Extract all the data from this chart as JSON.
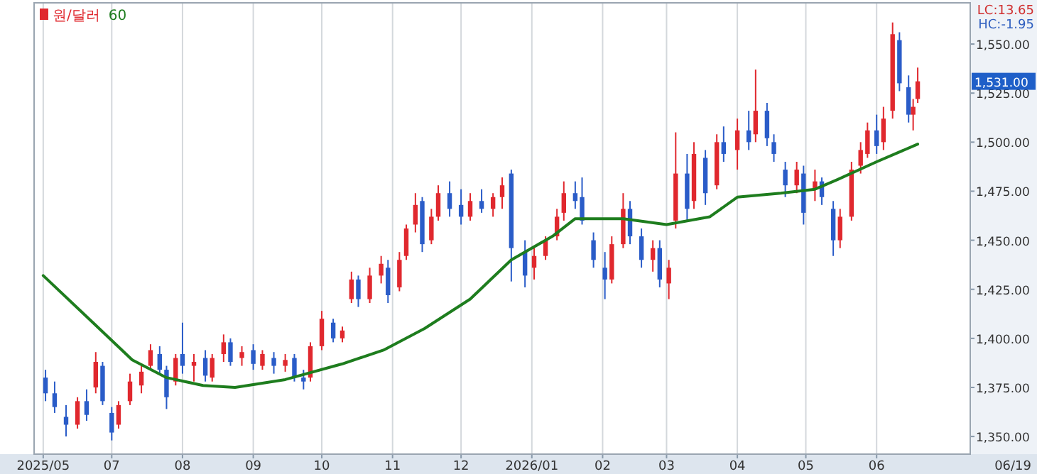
{
  "chart_data": {
    "type": "candlestick",
    "ylim": [
      1341,
      1571
    ],
    "yticks": [
      {
        "value": 1350,
        "label": "1,350.00"
      },
      {
        "value": 1375,
        "label": "1,375.00"
      },
      {
        "value": 1400,
        "label": "1,400.00"
      },
      {
        "value": 1425,
        "label": "1,425.00"
      },
      {
        "value": 1450,
        "label": "1,450.00"
      },
      {
        "value": 1475,
        "label": "1,475.00"
      },
      {
        "value": 1500,
        "label": "1,500.00"
      },
      {
        "value": 1525,
        "label": "1,525.00"
      },
      {
        "value": 1550,
        "label": "1,550.00"
      }
    ],
    "xlim": [
      "2025-05-28",
      "2026-07-12"
    ],
    "xticks": [
      {
        "value": "2025-06-01",
        "label": "2025/05"
      },
      {
        "value": "2025-07-01",
        "label": "07"
      },
      {
        "value": "2025-08-01",
        "label": "08"
      },
      {
        "value": "2025-09-01",
        "label": "09"
      },
      {
        "value": "2025-10-01",
        "label": "10"
      },
      {
        "value": "2025-11-01",
        "label": "11"
      },
      {
        "value": "2025-12-01",
        "label": "12"
      },
      {
        "value": "2026-01-01",
        "label": "2026/01"
      },
      {
        "value": "2026-02-01",
        "label": "02"
      },
      {
        "value": "2026-03-01",
        "label": "03"
      },
      {
        "value": "2026-04-01",
        "label": "04"
      },
      {
        "value": "2026-05-01",
        "label": "05"
      },
      {
        "value": "2026-06-01",
        "label": "06"
      }
    ],
    "grid": "x",
    "legend": "top left",
    "annotations": [
      "LC:13.65",
      "HC:-1.95",
      "1,531.00",
      "06/19"
    ],
    "series": [
      {
        "name": "원/달러",
        "x": [
          "2025-06-02",
          "2025-06-06",
          "2025-06-11",
          "2025-06-16",
          "2025-06-20",
          "2025-06-24",
          "2025-06-27",
          "2025-07-01",
          "2025-07-04",
          "2025-07-09",
          "2025-07-14",
          "2025-07-18",
          "2025-07-22",
          "2025-07-25",
          "2025-07-29",
          "2025-08-01",
          "2025-08-06",
          "2025-08-11",
          "2025-08-14",
          "2025-08-19",
          "2025-08-22",
          "2025-08-27",
          "2025-09-01",
          "2025-09-05",
          "2025-09-10",
          "2025-09-15",
          "2025-09-19",
          "2025-09-23",
          "2025-09-26",
          "2025-10-01",
          "2025-10-06",
          "2025-10-10",
          "2025-10-14",
          "2025-10-17",
          "2025-10-22",
          "2025-10-27",
          "2025-10-30",
          "2025-11-04",
          "2025-11-07",
          "2025-11-11",
          "2025-11-14",
          "2025-11-18",
          "2025-11-21",
          "2025-11-26",
          "2025-12-01",
          "2025-12-05",
          "2025-12-10",
          "2025-12-15",
          "2025-12-19",
          "2025-12-23",
          "2025-12-29",
          "2026-01-02",
          "2026-01-07",
          "2026-01-12",
          "2026-01-15",
          "2026-01-20",
          "2026-01-23",
          "2026-01-28",
          "2026-02-02",
          "2026-02-05",
          "2026-02-10",
          "2026-02-13",
          "2026-02-18",
          "2026-02-23",
          "2026-02-26",
          "2026-03-02",
          "2026-03-05",
          "2026-03-10",
          "2026-03-13",
          "2026-03-18",
          "2026-03-23",
          "2026-03-26",
          "2026-04-01",
          "2026-04-06",
          "2026-04-09",
          "2026-04-14",
          "2026-04-17",
          "2026-04-22",
          "2026-04-27",
          "2026-04-30",
          "2026-05-05",
          "2026-05-08",
          "2026-05-13",
          "2026-05-16",
          "2026-05-21",
          "2026-05-25",
          "2026-05-28",
          "2026-06-01",
          "2026-06-04",
          "2026-06-08",
          "2026-06-11",
          "2026-06-15",
          "2026-06-17",
          "2026-06-19"
        ],
        "ohlc": [
          [
            1380,
            1384,
            1368,
            1372
          ],
          [
            1372,
            1378,
            1362,
            1365
          ],
          [
            1360,
            1366,
            1350,
            1356
          ],
          [
            1356,
            1370,
            1354,
            1368
          ],
          [
            1368,
            1374,
            1358,
            1361
          ],
          [
            1375,
            1393,
            1372,
            1388
          ],
          [
            1386,
            1388,
            1366,
            1368
          ],
          [
            1362,
            1365,
            1348,
            1352
          ],
          [
            1356,
            1368,
            1354,
            1366
          ],
          [
            1368,
            1382,
            1366,
            1378
          ],
          [
            1376,
            1386,
            1372,
            1383
          ],
          [
            1386,
            1397,
            1384,
            1394
          ],
          [
            1392,
            1396,
            1382,
            1384
          ],
          [
            1384,
            1386,
            1364,
            1370
          ],
          [
            1378,
            1392,
            1376,
            1390
          ],
          [
            1392,
            1408,
            1382,
            1386
          ],
          [
            1386,
            1392,
            1378,
            1388
          ],
          [
            1390,
            1394,
            1378,
            1381
          ],
          [
            1380,
            1392,
            1378,
            1390
          ],
          [
            1392,
            1402,
            1388,
            1398
          ],
          [
            1398,
            1400,
            1386,
            1388
          ],
          [
            1390,
            1396,
            1386,
            1393
          ],
          [
            1394,
            1397,
            1384,
            1387
          ],
          [
            1386,
            1394,
            1384,
            1392
          ],
          [
            1390,
            1393,
            1382,
            1386
          ],
          [
            1386,
            1392,
            1383,
            1389
          ],
          [
            1390,
            1392,
            1378,
            1380
          ],
          [
            1380,
            1384,
            1374,
            1378
          ],
          [
            1380,
            1398,
            1378,
            1396
          ],
          [
            1396,
            1414,
            1394,
            1410
          ],
          [
            1408,
            1410,
            1398,
            1400
          ],
          [
            1400,
            1406,
            1398,
            1404
          ],
          [
            1420,
            1434,
            1418,
            1430
          ],
          [
            1430,
            1432,
            1416,
            1420
          ],
          [
            1420,
            1436,
            1418,
            1432
          ],
          [
            1432,
            1442,
            1428,
            1438
          ],
          [
            1436,
            1440,
            1418,
            1422
          ],
          [
            1426,
            1444,
            1424,
            1440
          ],
          [
            1442,
            1458,
            1440,
            1456
          ],
          [
            1458,
            1474,
            1454,
            1468
          ],
          [
            1470,
            1472,
            1444,
            1448
          ],
          [
            1450,
            1466,
            1448,
            1462
          ],
          [
            1462,
            1478,
            1460,
            1474
          ],
          [
            1474,
            1480,
            1462,
            1466
          ],
          [
            1468,
            1476,
            1458,
            1462
          ],
          [
            1462,
            1474,
            1460,
            1470
          ],
          [
            1470,
            1476,
            1464,
            1466
          ],
          [
            1466,
            1474,
            1462,
            1472
          ],
          [
            1472,
            1482,
            1466,
            1478
          ],
          [
            1484,
            1486,
            1429,
            1446
          ],
          [
            1444,
            1450,
            1426,
            1432
          ],
          [
            1436,
            1446,
            1430,
            1442
          ],
          [
            1442,
            1452,
            1440,
            1450
          ],
          [
            1452,
            1466,
            1450,
            1462
          ],
          [
            1464,
            1480,
            1460,
            1474
          ],
          [
            1474,
            1480,
            1466,
            1470
          ],
          [
            1472,
            1482,
            1458,
            1460
          ],
          [
            1450,
            1454,
            1436,
            1440
          ],
          [
            1436,
            1444,
            1420,
            1430
          ],
          [
            1430,
            1452,
            1428,
            1448
          ],
          [
            1448,
            1474,
            1446,
            1466
          ],
          [
            1466,
            1470,
            1448,
            1452
          ],
          [
            1452,
            1456,
            1436,
            1440
          ],
          [
            1440,
            1450,
            1434,
            1446
          ],
          [
            1446,
            1450,
            1426,
            1430
          ],
          [
            1428,
            1440,
            1420,
            1436
          ],
          [
            1460,
            1505,
            1456,
            1484
          ],
          [
            1484,
            1494,
            1460,
            1466
          ],
          [
            1470,
            1500,
            1466,
            1494
          ],
          [
            1492,
            1496,
            1468,
            1474
          ],
          [
            1478,
            1504,
            1476,
            1500
          ],
          [
            1500,
            1508,
            1490,
            1494
          ],
          [
            1496,
            1512,
            1486,
            1506
          ],
          [
            1506,
            1516,
            1496,
            1500
          ],
          [
            1504,
            1537,
            1500,
            1516
          ],
          [
            1516,
            1520,
            1498,
            1502
          ],
          [
            1500,
            1504,
            1490,
            1494
          ],
          [
            1486,
            1490,
            1472,
            1478
          ],
          [
            1478,
            1490,
            1474,
            1486
          ],
          [
            1484,
            1488,
            1458,
            1464
          ],
          [
            1476,
            1486,
            1470,
            1480
          ],
          [
            1480,
            1482,
            1468,
            1472
          ],
          [
            1466,
            1470,
            1442,
            1450
          ],
          [
            1450,
            1466,
            1446,
            1462
          ],
          [
            1462,
            1490,
            1460,
            1486
          ],
          [
            1488,
            1500,
            1484,
            1496
          ],
          [
            1494,
            1510,
            1492,
            1506
          ],
          [
            1506,
            1514,
            1494,
            1498
          ],
          [
            1500,
            1518,
            1496,
            1512
          ],
          [
            1516,
            1561,
            1512,
            1555
          ],
          [
            1552,
            1556,
            1526,
            1530
          ],
          [
            1528,
            1534,
            1510,
            1514
          ],
          [
            1514,
            1522,
            1506,
            1518
          ],
          [
            1522,
            1538,
            1520,
            1531
          ]
        ],
        "colors": [
          "#2a5cc8",
          "#2a5cc8",
          "#2a5cc8",
          "#e0282e",
          "#2a5cc8",
          "#e0282e",
          "#2a5cc8",
          "#2a5cc8",
          "#e0282e",
          "#e0282e",
          "#e0282e",
          "#e0282e",
          "#2a5cc8",
          "#2a5cc8",
          "#e0282e",
          "#2a5cc8",
          "#e0282e",
          "#2a5cc8",
          "#e0282e",
          "#e0282e",
          "#2a5cc8",
          "#e0282e",
          "#2a5cc8",
          "#e0282e",
          "#2a5cc8",
          "#e0282e",
          "#2a5cc8",
          "#2a5cc8",
          "#e0282e",
          "#e0282e",
          "#2a5cc8",
          "#e0282e",
          "#e0282e",
          "#2a5cc8",
          "#e0282e",
          "#e0282e",
          "#2a5cc8",
          "#e0282e",
          "#e0282e",
          "#e0282e",
          "#2a5cc8",
          "#e0282e",
          "#e0282e",
          "#2a5cc8",
          "#2a5cc8",
          "#e0282e",
          "#2a5cc8",
          "#e0282e",
          "#e0282e",
          "#2a5cc8",
          "#2a5cc8",
          "#e0282e",
          "#e0282e",
          "#e0282e",
          "#e0282e",
          "#2a5cc8",
          "#2a5cc8",
          "#2a5cc8",
          "#2a5cc8",
          "#e0282e",
          "#e0282e",
          "#2a5cc8",
          "#2a5cc8",
          "#e0282e",
          "#2a5cc8",
          "#e0282e",
          "#e0282e",
          "#2a5cc8",
          "#e0282e",
          "#2a5cc8",
          "#e0282e",
          "#2a5cc8",
          "#e0282e",
          "#2a5cc8",
          "#e0282e",
          "#2a5cc8",
          "#2a5cc8",
          "#2a5cc8",
          "#e0282e",
          "#2a5cc8",
          "#e0282e",
          "#2a5cc8",
          "#2a5cc8",
          "#e0282e",
          "#e0282e",
          "#e0282e",
          "#e0282e",
          "#2a5cc8",
          "#e0282e",
          "#e0282e",
          "#2a5cc8",
          "#2a5cc8",
          "#e0282e",
          "#e0282e"
        ]
      },
      {
        "name": "60",
        "type": "line",
        "color": "#1e7d1e",
        "x": [
          "2025-06-01",
          "2025-06-21",
          "2025-07-10",
          "2025-07-25",
          "2025-08-10",
          "2025-08-24",
          "2025-09-15",
          "2025-10-10",
          "2025-10-28",
          "2025-11-15",
          "2025-12-05",
          "2025-12-23",
          "2026-01-10",
          "2026-01-20",
          "2026-02-10",
          "2026-03-01",
          "2026-03-20",
          "2026-04-01",
          "2026-04-20",
          "2026-05-05",
          "2026-05-15",
          "2026-06-01",
          "2026-06-19"
        ],
        "values": [
          1432,
          1410,
          1389,
          1380,
          1376,
          1375,
          1379,
          1387,
          1394,
          1405,
          1420,
          1440,
          1452,
          1461,
          1461,
          1458,
          1462,
          1472,
          1474,
          1476,
          1481,
          1490,
          1499
        ]
      }
    ]
  }
}
